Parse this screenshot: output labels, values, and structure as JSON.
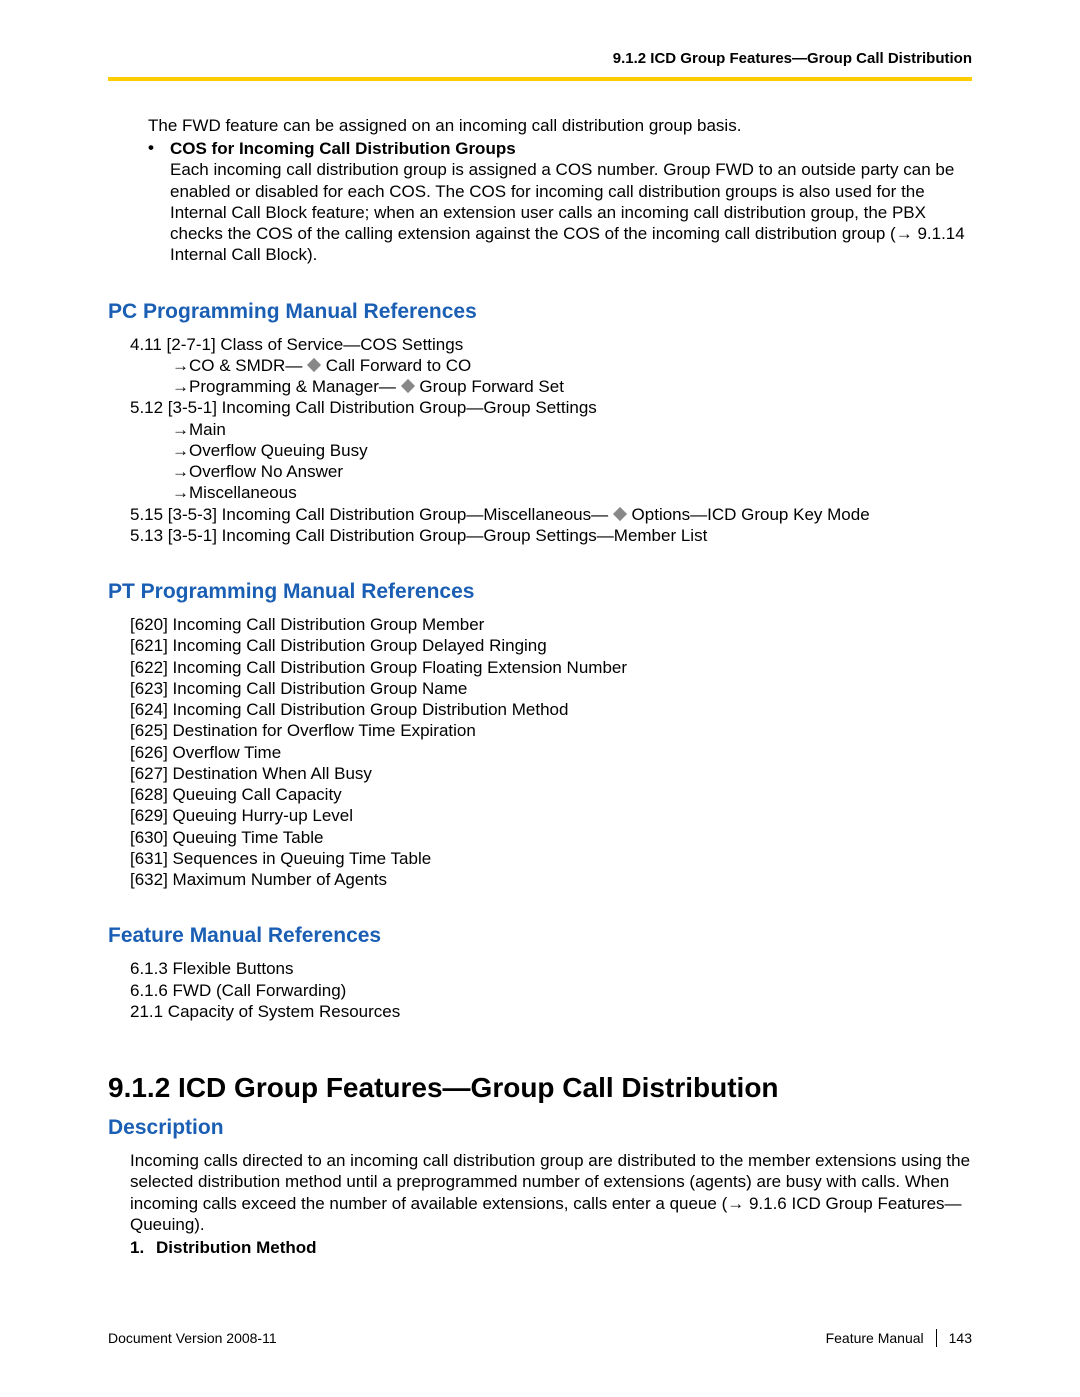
{
  "header": {
    "running_title": "9.1.2 ICD Group Features—Group Call Distribution"
  },
  "intro": {
    "line1": "The FWD feature can be assigned on an incoming call distribution group basis.",
    "bullet_title": "COS for Incoming Call Distribution Groups",
    "bullet_body": "Each incoming call distribution group is assigned a COS number. Group FWD to an outside party can be enabled or disabled for each COS. The COS for incoming call distribution groups is also used for the Internal Call Block feature; when an extension user calls an incoming call distribution group, the PBX checks the COS of the calling extension against the COS of the incoming call distribution group (→ 9.1.14  Internal Call Block)."
  },
  "pc_refs": {
    "heading": "PC Programming Manual References",
    "lines": [
      "4.11  [2-7-1] Class of Service—COS Settings",
      "→CO & SMDR— ◆ Call Forward to CO",
      "→Programming & Manager— ◆ Group Forward Set",
      "5.12  [3-5-1] Incoming Call Distribution Group—Group Settings",
      "→Main",
      "→Overflow Queuing Busy",
      "→Overflow No Answer",
      "→Miscellaneous",
      "5.15  [3-5-3] Incoming Call Distribution Group—Miscellaneous— ◆ Options—ICD Group Key Mode",
      "5.13  [3-5-1] Incoming Call Distribution Group—Group Settings—Member List"
    ],
    "indent_flags": [
      false,
      true,
      true,
      false,
      true,
      true,
      true,
      true,
      false,
      false
    ]
  },
  "pt_refs": {
    "heading": "PT Programming Manual References",
    "lines": [
      "[620] Incoming Call Distribution Group Member",
      "[621] Incoming Call Distribution Group Delayed Ringing",
      "[622] Incoming Call Distribution Group Floating Extension Number",
      "[623] Incoming Call Distribution Group Name",
      "[624] Incoming Call Distribution Group Distribution Method",
      "[625] Destination for Overflow Time Expiration",
      "[626] Overflow Time",
      "[627] Destination When All Busy",
      "[628] Queuing Call Capacity",
      "[629] Queuing Hurry-up Level",
      "[630] Queuing Time Table",
      "[631] Sequences in Queuing Time Table",
      "[632] Maximum Number of Agents"
    ]
  },
  "feat_refs": {
    "heading": "Feature Manual References",
    "lines": [
      "6.1.3  Flexible Buttons",
      "6.1.6  FWD (Call Forwarding)",
      "21.1  Capacity of System Resources"
    ]
  },
  "section": {
    "title": "9.1.2  ICD Group Features—Group Call Distribution",
    "desc_heading": "Description",
    "desc_body": "Incoming calls directed to an incoming call distribution group are distributed to the member extensions using the selected distribution method until a preprogrammed number of extensions (agents) are busy with calls. When incoming calls exceed the number of available extensions, calls enter a queue (→ 9.1.6  ICD Group Features—Queuing).",
    "num_label": "1.",
    "num_text": "Distribution Method"
  },
  "footer": {
    "left": "Document Version  2008-11",
    "right_label": "Feature Manual",
    "page": "143"
  }
}
